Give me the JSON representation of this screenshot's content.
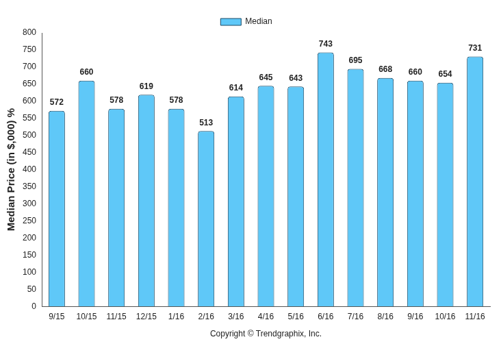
{
  "chart_data": {
    "type": "bar",
    "y_label": "Median Price (in $,000) %",
    "x_label": "Copyright © Trendgraphix, Inc.",
    "categories": [
      "9/15",
      "10/15",
      "11/15",
      "12/15",
      "1/16",
      "2/16",
      "3/16",
      "4/16",
      "5/16",
      "6/16",
      "7/16",
      "8/16",
      "9/16",
      "10/16",
      "11/16"
    ],
    "series": [
      {
        "name": "Median",
        "color": "#5fc8f8",
        "values": [
          572,
          660,
          578,
          619,
          578,
          513,
          614,
          645,
          643,
          743,
          695,
          668,
          660,
          654,
          731
        ]
      }
    ],
    "ylim": [
      0,
      800
    ],
    "yticks": [
      0,
      50,
      100,
      150,
      200,
      250,
      300,
      350,
      400,
      450,
      500,
      550,
      600,
      650,
      700,
      750,
      800
    ],
    "grid": false,
    "legend": "top",
    "data_labels": true
  }
}
